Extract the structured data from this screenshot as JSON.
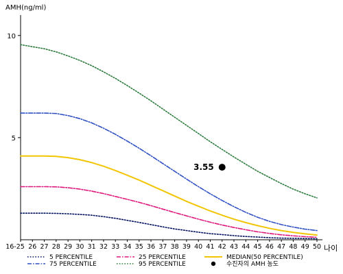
{
  "chart_data": {
    "type": "line",
    "ylabel": "AMH(ng/ml)",
    "xlabel": "나이",
    "ylim": [
      0,
      11
    ],
    "yticks": [
      5,
      10
    ],
    "ytick_labels": [
      "5",
      "10"
    ],
    "categories": [
      "16-25",
      "26",
      "27",
      "28",
      "29",
      "30",
      "31",
      "32",
      "33",
      "34",
      "35",
      "36",
      "37",
      "38",
      "39",
      "40",
      "41",
      "42",
      "43",
      "44",
      "45",
      "46",
      "47",
      "48",
      "49",
      "50"
    ],
    "grid": false,
    "legend_position": "bottom",
    "series": [
      {
        "name": "5 PERCENTILE",
        "color": "#001060",
        "style": "dotted",
        "values": [
          1.3,
          1.3,
          1.3,
          1.29,
          1.27,
          1.24,
          1.2,
          1.13,
          1.05,
          0.95,
          0.85,
          0.74,
          0.63,
          0.53,
          0.45,
          0.37,
          0.3,
          0.25,
          0.2,
          0.16,
          0.13,
          0.1,
          0.08,
          0.07,
          0.06,
          0.05
        ]
      },
      {
        "name": "25 PERCENTILE",
        "color": "#e0157a",
        "style": "dashdot",
        "values": [
          2.6,
          2.6,
          2.6,
          2.59,
          2.55,
          2.48,
          2.38,
          2.26,
          2.12,
          1.98,
          1.83,
          1.67,
          1.5,
          1.33,
          1.17,
          1.01,
          0.86,
          0.72,
          0.6,
          0.49,
          0.39,
          0.31,
          0.24,
          0.19,
          0.15,
          0.12
        ]
      },
      {
        "name": "MEDIAN(50 PERCENTILE)",
        "color": "#f2c500",
        "style": "solid",
        "values": [
          4.1,
          4.1,
          4.1,
          4.08,
          4.02,
          3.92,
          3.78,
          3.6,
          3.39,
          3.16,
          2.92,
          2.66,
          2.4,
          2.14,
          1.88,
          1.64,
          1.41,
          1.2,
          1.01,
          0.84,
          0.69,
          0.56,
          0.45,
          0.36,
          0.29,
          0.23
        ]
      },
      {
        "name": "75 PERCENTILE",
        "color": "#2e4fc4",
        "style": "dashdot",
        "values": [
          6.2,
          6.2,
          6.2,
          6.18,
          6.08,
          5.93,
          5.72,
          5.46,
          5.16,
          4.83,
          4.48,
          4.11,
          3.73,
          3.35,
          2.97,
          2.6,
          2.25,
          1.92,
          1.62,
          1.34,
          1.1,
          0.9,
          0.74,
          0.62,
          0.52,
          0.45
        ]
      },
      {
        "name": "95 PERCENTILE",
        "color": "#2a7a3a",
        "style": "dotted",
        "values": [
          9.55,
          9.45,
          9.35,
          9.2,
          9.0,
          8.78,
          8.52,
          8.22,
          7.9,
          7.55,
          7.18,
          6.8,
          6.4,
          6.0,
          5.6,
          5.2,
          4.8,
          4.42,
          4.05,
          3.7,
          3.35,
          3.05,
          2.75,
          2.48,
          2.25,
          2.05
        ]
      }
    ],
    "patient_point": {
      "label": "수진자의 AMH 농도",
      "category": "42",
      "value": 3.55,
      "text": "3.55",
      "color": "#000000"
    }
  }
}
